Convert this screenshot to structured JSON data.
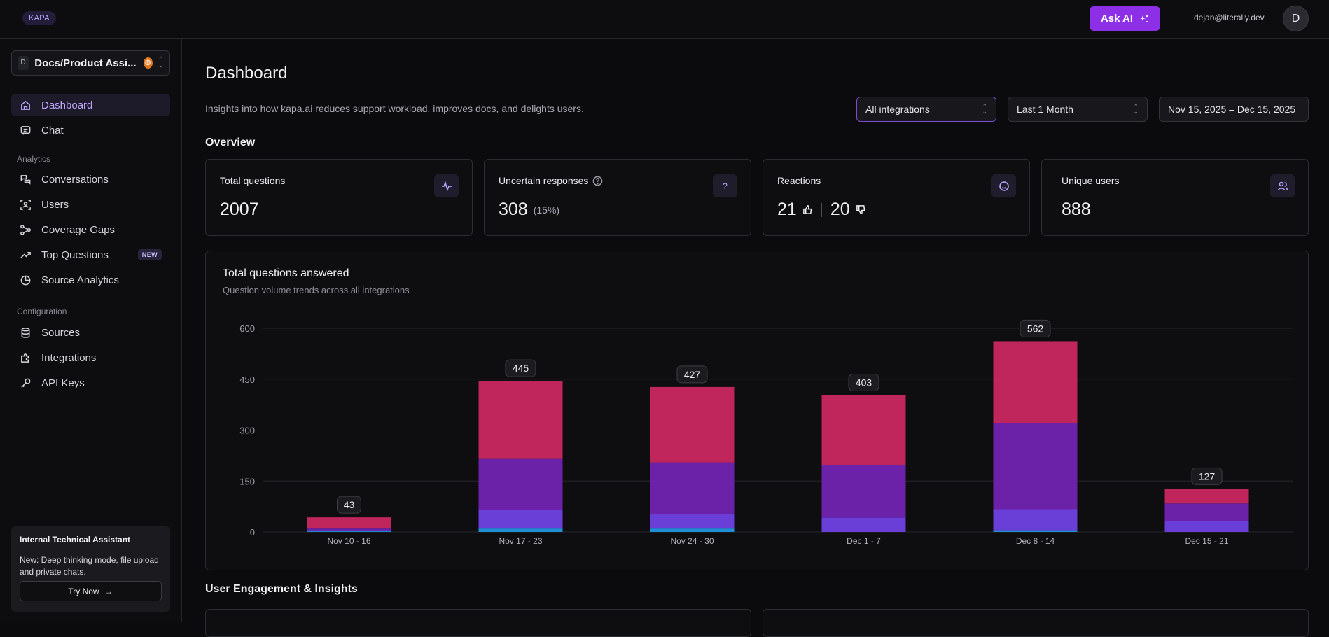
{
  "topbar": {
    "brand": "KAPA",
    "ask_ai_label": "Ask AI",
    "user_email": "dejan@literally.dev",
    "avatar_initial": "D"
  },
  "sidebar": {
    "project": {
      "initial": "D",
      "name": "Docs/Product Assi..."
    },
    "nav_main": [
      {
        "label": "Dashboard",
        "icon": "home-icon",
        "active": true
      },
      {
        "label": "Chat",
        "icon": "message-icon",
        "active": false
      }
    ],
    "analytics_label": "Analytics",
    "nav_analytics": [
      {
        "label": "Conversations",
        "icon": "conversations-icon"
      },
      {
        "label": "Users",
        "icon": "users-scan-icon"
      },
      {
        "label": "Coverage Gaps",
        "icon": "coverage-gaps-icon"
      },
      {
        "label": "Top Questions",
        "icon": "trending-up-icon",
        "badge": "NEW"
      },
      {
        "label": "Source Analytics",
        "icon": "pie-chart-icon"
      }
    ],
    "configuration_label": "Configuration",
    "nav_config": [
      {
        "label": "Sources",
        "icon": "database-icon"
      },
      {
        "label": "Integrations",
        "icon": "puzzle-icon"
      },
      {
        "label": "API Keys",
        "icon": "key-icon"
      }
    ],
    "promo": {
      "title": "Internal Technical Assistant",
      "text": "New: Deep thinking mode, file upload and private chats.",
      "button": "Try Now"
    }
  },
  "main": {
    "title": "Dashboard",
    "subtitle": "Insights into how kapa.ai reduces support workload, improves docs, and delights users.",
    "filters": {
      "integration": "All integrations",
      "period": "Last 1 Month",
      "date_range": "Nov 15, 2025 – Dec 15, 2025"
    },
    "overview_label": "Overview",
    "cards": {
      "total_questions": {
        "title": "Total questions",
        "value": "2007"
      },
      "uncertain": {
        "title": "Uncertain responses",
        "value": "308",
        "pct": "(15%)"
      },
      "reactions": {
        "title": "Reactions",
        "up": "21",
        "down": "20"
      },
      "unique_users": {
        "title": "Unique users",
        "value": "888"
      }
    },
    "engagement_label": "User Engagement & Insights"
  },
  "chart_data": {
    "type": "bar",
    "stacked": true,
    "title": "Total questions answered",
    "subtitle": "Question volume trends across all integrations",
    "categories": [
      "Nov 10 - 16",
      "Nov 17 - 23",
      "Nov 24 - 30",
      "Dec 1 - 7",
      "Dec 8 - 14",
      "Dec 15 - 21"
    ],
    "totals": [
      43,
      445,
      427,
      403,
      562,
      127
    ],
    "series": [
      {
        "name": "series-teal",
        "color": "#1f8fd6",
        "values": [
          2,
          10,
          10,
          0,
          5,
          0
        ]
      },
      {
        "name": "series-indigo",
        "color": "#6a3fd8",
        "values": [
          3,
          55,
          42,
          42,
          62,
          32
        ]
      },
      {
        "name": "series-purple",
        "color": "#6b21a8",
        "values": [
          5,
          150,
          153,
          155,
          253,
          52
        ]
      },
      {
        "name": "series-crimson",
        "color": "#c0255c",
        "values": [
          33,
          230,
          222,
          206,
          242,
          43
        ]
      }
    ],
    "yticks": [
      0,
      150,
      300,
      450,
      600
    ],
    "ylim": [
      0,
      600
    ]
  }
}
